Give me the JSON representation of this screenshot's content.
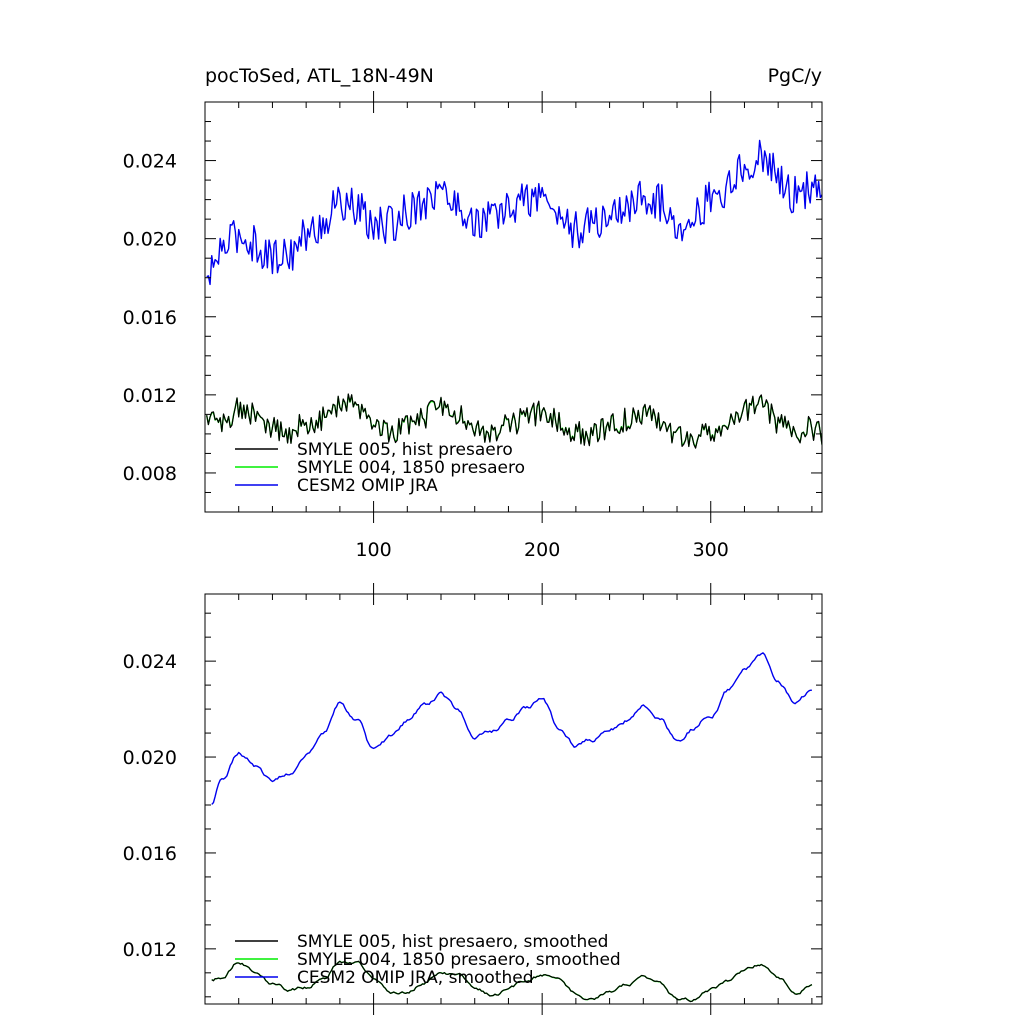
{
  "colors": {
    "smyle005": "#000000",
    "smyle004": "#00ee00",
    "cesm2": "#0000ee"
  },
  "chart_data": [
    {
      "type": "line",
      "title_left": "pocToSed, ATL_18N-49N",
      "title_right": "PgC/y",
      "xlabel": "",
      "ylabel": "",
      "xlim": [
        0,
        366
      ],
      "ylim": [
        0.006,
        0.027
      ],
      "x_ticks": [
        100,
        200,
        300
      ],
      "x_tick_labels": [
        "100",
        "200",
        "300"
      ],
      "y_ticks": [
        0.008,
        0.012,
        0.016,
        0.02,
        0.024
      ],
      "y_tick_labels": [
        "0.008",
        "0.012",
        "0.016",
        "0.020",
        "0.024"
      ],
      "grid": false,
      "legend_position": "bottom-left",
      "series": [
        {
          "name": "SMYLE 005, hist presaero",
          "x_start": 1,
          "x_step": 1,
          "anchors_x": [
            1,
            10,
            20,
            30,
            40,
            50,
            60,
            70,
            80,
            90,
            100,
            110,
            120,
            130,
            140,
            150,
            160,
            170,
            180,
            190,
            200,
            210,
            220,
            230,
            240,
            250,
            260,
            270,
            280,
            290,
            300,
            310,
            320,
            330,
            340,
            350,
            360,
            366
          ],
          "anchors_y": [
            0.0108,
            0.0105,
            0.0114,
            0.0109,
            0.0103,
            0.0101,
            0.0105,
            0.0108,
            0.0115,
            0.0114,
            0.0107,
            0.0101,
            0.0103,
            0.0109,
            0.0114,
            0.011,
            0.0103,
            0.0101,
            0.0104,
            0.0108,
            0.0111,
            0.0106,
            0.0101,
            0.01,
            0.0104,
            0.0107,
            0.011,
            0.0106,
            0.01,
            0.0098,
            0.0102,
            0.0106,
            0.0112,
            0.0115,
            0.0106,
            0.01,
            0.0103,
            0.01
          ],
          "noise": 0.0006
        },
        {
          "name": "SMYLE 004, 1850 presaero",
          "x_start": 1,
          "x_step": 1,
          "anchors_x": [
            1,
            10,
            20,
            30,
            40,
            50,
            60,
            70,
            80,
            90,
            100,
            110,
            120,
            130,
            140,
            150,
            160,
            170,
            180,
            190,
            200,
            210,
            220,
            230,
            240,
            250,
            260,
            270,
            280,
            290,
            300,
            310,
            320,
            330,
            340,
            350,
            360,
            366
          ],
          "anchors_y": [
            0.0108,
            0.0105,
            0.0114,
            0.0109,
            0.0103,
            0.0101,
            0.0105,
            0.0108,
            0.0115,
            0.0114,
            0.0107,
            0.0101,
            0.0103,
            0.0109,
            0.0114,
            0.011,
            0.0103,
            0.0101,
            0.0104,
            0.0108,
            0.0111,
            0.0106,
            0.0101,
            0.01,
            0.0104,
            0.0107,
            0.011,
            0.0106,
            0.01,
            0.0098,
            0.0102,
            0.0106,
            0.0112,
            0.0115,
            0.0106,
            0.01,
            0.0103,
            0.01
          ],
          "noise": 0.0006
        },
        {
          "name": "CESM2 OMIP JRA",
          "x_start": 1,
          "x_step": 1,
          "anchors_x": [
            1,
            10,
            20,
            30,
            40,
            50,
            60,
            70,
            80,
            90,
            100,
            110,
            120,
            130,
            140,
            150,
            160,
            170,
            180,
            190,
            200,
            210,
            220,
            230,
            240,
            250,
            260,
            270,
            280,
            290,
            300,
            310,
            320,
            330,
            340,
            350,
            360,
            366
          ],
          "anchors_y": [
            0.0178,
            0.0195,
            0.0202,
            0.0197,
            0.019,
            0.0193,
            0.0201,
            0.0208,
            0.0219,
            0.0215,
            0.0206,
            0.0207,
            0.0214,
            0.022,
            0.0224,
            0.0217,
            0.0208,
            0.021,
            0.0215,
            0.022,
            0.0222,
            0.0212,
            0.0204,
            0.0207,
            0.0212,
            0.0216,
            0.0222,
            0.0218,
            0.0208,
            0.0212,
            0.022,
            0.0226,
            0.0236,
            0.0243,
            0.0232,
            0.0222,
            0.0225,
            0.0223
          ],
          "noise": 0.001
        }
      ]
    },
    {
      "type": "line",
      "title_left": "",
      "title_right": "",
      "xlabel": "",
      "ylabel": "",
      "xlim": [
        0,
        366
      ],
      "ylim": [
        0.0097,
        0.0268
      ],
      "x_ticks": [
        100,
        200,
        300
      ],
      "x_tick_labels": [],
      "y_ticks": [
        0.012,
        0.016,
        0.02,
        0.024
      ],
      "y_tick_labels": [
        "0.012",
        "0.016",
        "0.020",
        "0.024"
      ],
      "grid": false,
      "legend_position": "bottom-left",
      "series": [
        {
          "name": "SMYLE 005, hist presaero, smoothed",
          "x_start": 4,
          "x_step": 1,
          "x_end": 360,
          "anchors_x": [
            4,
            10,
            20,
            30,
            40,
            50,
            60,
            70,
            80,
            90,
            100,
            110,
            120,
            130,
            140,
            150,
            160,
            170,
            180,
            190,
            200,
            210,
            220,
            230,
            240,
            250,
            260,
            270,
            280,
            290,
            300,
            310,
            320,
            330,
            340,
            350,
            360
          ],
          "anchors_y": [
            0.0107,
            0.0108,
            0.0115,
            0.0111,
            0.0106,
            0.0103,
            0.0104,
            0.0108,
            0.0115,
            0.0114,
            0.0108,
            0.0102,
            0.0102,
            0.0106,
            0.011,
            0.0109,
            0.0104,
            0.0101,
            0.0103,
            0.0106,
            0.0109,
            0.0106,
            0.0101,
            0.0099,
            0.0102,
            0.0105,
            0.0108,
            0.0105,
            0.0099,
            0.0099,
            0.0103,
            0.0106,
            0.0111,
            0.0114,
            0.0108,
            0.0102,
            0.0105
          ],
          "noise": 0.00012
        },
        {
          "name": "SMYLE 004, 1850 presaero, smoothed",
          "x_start": 4,
          "x_step": 1,
          "x_end": 360,
          "anchors_x": [
            4,
            10,
            20,
            30,
            40,
            50,
            60,
            70,
            80,
            90,
            100,
            110,
            120,
            130,
            140,
            150,
            160,
            170,
            180,
            190,
            200,
            210,
            220,
            230,
            240,
            250,
            260,
            270,
            280,
            290,
            300,
            310,
            320,
            330,
            340,
            350,
            360
          ],
          "anchors_y": [
            0.0107,
            0.0108,
            0.0115,
            0.0111,
            0.0106,
            0.0103,
            0.0104,
            0.0108,
            0.0115,
            0.0114,
            0.0108,
            0.0102,
            0.0102,
            0.0106,
            0.011,
            0.0109,
            0.0104,
            0.0101,
            0.0103,
            0.0106,
            0.0109,
            0.0106,
            0.0101,
            0.0099,
            0.0102,
            0.0105,
            0.0108,
            0.0105,
            0.0099,
            0.0099,
            0.0103,
            0.0106,
            0.0111,
            0.0114,
            0.0108,
            0.0102,
            0.0105
          ],
          "noise": 0.00012
        },
        {
          "name": "CESM2 OMIP JRA, smoothed",
          "x_start": 4,
          "x_step": 1,
          "x_end": 360,
          "anchors_x": [
            4,
            10,
            20,
            30,
            40,
            50,
            60,
            70,
            80,
            90,
            100,
            110,
            120,
            130,
            140,
            150,
            160,
            170,
            180,
            190,
            200,
            210,
            220,
            230,
            240,
            250,
            260,
            270,
            280,
            290,
            300,
            310,
            320,
            330,
            340,
            350,
            360
          ],
          "anchors_y": [
            0.018,
            0.0192,
            0.0203,
            0.0197,
            0.019,
            0.0193,
            0.0201,
            0.0208,
            0.0222,
            0.0215,
            0.0202,
            0.0208,
            0.0215,
            0.0222,
            0.0226,
            0.0219,
            0.0209,
            0.021,
            0.0215,
            0.022,
            0.0224,
            0.0212,
            0.0204,
            0.0207,
            0.0212,
            0.0216,
            0.0222,
            0.0217,
            0.0207,
            0.0212,
            0.0218,
            0.0228,
            0.0238,
            0.0244,
            0.0232,
            0.0222,
            0.0228
          ],
          "noise": 0.00018
        }
      ]
    }
  ]
}
